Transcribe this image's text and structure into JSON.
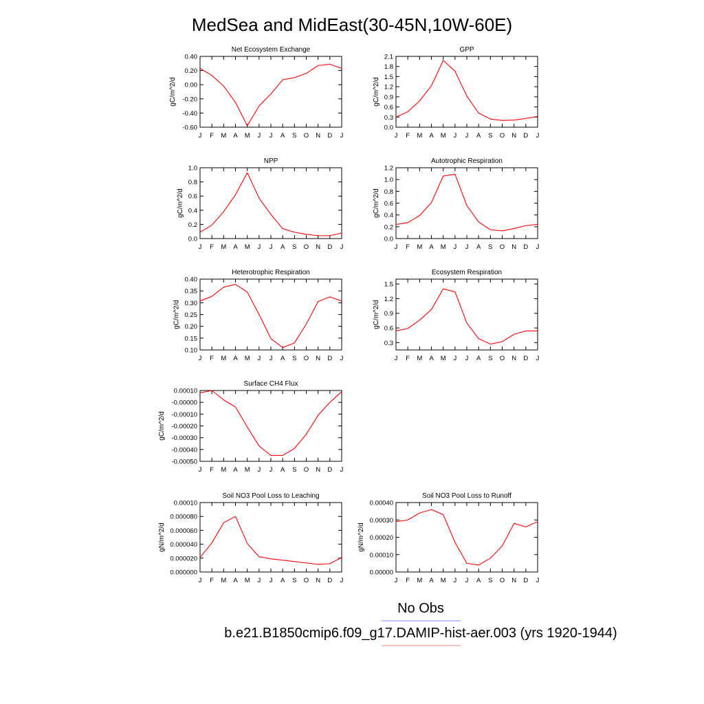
{
  "figure": {
    "title": "MedSea and MidEast(30-45N,10W-60E)",
    "legend": [
      {
        "label": "No Obs",
        "color": "#8080ff"
      },
      {
        "label": "b.e21.B1850cmip6.f09_g17.DAMIP-hist-aer.003 (yrs 1920-1944)",
        "color": "#ff8080"
      }
    ],
    "series_color": "#ff0000"
  },
  "chart_data": [
    {
      "type": "line",
      "title": "Net Ecosystem Exchange",
      "ylabel": "gC/m^2/d",
      "x": [
        "J",
        "F",
        "M",
        "A",
        "M",
        "J",
        "J",
        "A",
        "S",
        "O",
        "N",
        "D",
        "J"
      ],
      "ylim": [
        -0.6,
        0.4
      ],
      "yticks": [
        -0.6,
        -0.4,
        -0.2,
        0.0,
        0.2,
        0.4
      ],
      "ytick_labels": [
        "-0.60",
        "-0.40",
        "-0.20",
        "0.00",
        "0.20",
        "0.40"
      ],
      "values": [
        0.23,
        0.13,
        -0.02,
        -0.25,
        -0.58,
        -0.3,
        -0.13,
        0.07,
        0.1,
        0.16,
        0.27,
        0.29,
        0.23
      ]
    },
    {
      "type": "line",
      "title": "GPP",
      "ylabel": "gC/m^2/d",
      "x": [
        "J",
        "F",
        "M",
        "A",
        "M",
        "J",
        "J",
        "A",
        "S",
        "O",
        "N",
        "D",
        "J"
      ],
      "ylim": [
        0,
        2.1
      ],
      "yticks": [
        0,
        0.3,
        0.6,
        0.9,
        1.2,
        1.5,
        1.8,
        2.1
      ],
      "ytick_labels": [
        "0.0",
        "0.3",
        "0.6",
        "0.9",
        "1.2",
        "1.5",
        "1.8",
        "2.1"
      ],
      "values": [
        0.3,
        0.46,
        0.78,
        1.23,
        1.98,
        1.66,
        0.92,
        0.42,
        0.24,
        0.2,
        0.21,
        0.26,
        0.32
      ]
    },
    {
      "type": "line",
      "title": "NPP",
      "ylabel": "gC/m^2/d",
      "x": [
        "J",
        "F",
        "M",
        "A",
        "M",
        "J",
        "J",
        "A",
        "S",
        "O",
        "N",
        "D",
        "J"
      ],
      "ylim": [
        0,
        1.0
      ],
      "yticks": [
        0,
        0.2,
        0.4,
        0.6,
        0.8,
        1.0
      ],
      "ytick_labels": [
        "0.0",
        "0.2",
        "0.4",
        "0.6",
        "0.8",
        "1.0"
      ],
      "values": [
        0.09,
        0.19,
        0.38,
        0.62,
        0.93,
        0.57,
        0.34,
        0.14,
        0.09,
        0.06,
        0.04,
        0.04,
        0.08
      ]
    },
    {
      "type": "line",
      "title": "Autotrophic Respiration",
      "ylabel": "gC/m^2/d",
      "x": [
        "J",
        "F",
        "M",
        "A",
        "M",
        "J",
        "J",
        "A",
        "S",
        "O",
        "N",
        "D",
        "J"
      ],
      "ylim": [
        0,
        1.2
      ],
      "yticks": [
        0,
        0.2,
        0.4,
        0.6,
        0.8,
        1.0,
        1.2
      ],
      "ytick_labels": [
        "0.0",
        "0.2",
        "0.4",
        "0.6",
        "0.8",
        "1.0",
        "1.2"
      ],
      "values": [
        0.24,
        0.27,
        0.39,
        0.61,
        1.06,
        1.09,
        0.56,
        0.28,
        0.15,
        0.13,
        0.17,
        0.22,
        0.24
      ]
    },
    {
      "type": "line",
      "title": "Heterotrophic Respiration",
      "ylabel": "gC/m^2/d",
      "x": [
        "J",
        "F",
        "M",
        "A",
        "M",
        "J",
        "J",
        "A",
        "S",
        "O",
        "N",
        "D",
        "J"
      ],
      "ylim": [
        0.1,
        0.4
      ],
      "yticks": [
        0.1,
        0.15,
        0.2,
        0.25,
        0.3,
        0.35,
        0.4
      ],
      "ytick_labels": [
        "0.10",
        "0.15",
        "0.20",
        "0.25",
        "0.30",
        "0.35",
        "0.40"
      ],
      "values": [
        0.307,
        0.327,
        0.366,
        0.378,
        0.345,
        0.25,
        0.148,
        0.11,
        0.13,
        0.21,
        0.305,
        0.325,
        0.307
      ]
    },
    {
      "type": "line",
      "title": "Ecosystem Respiration",
      "ylabel": "gC/m^2/d",
      "x": [
        "J",
        "F",
        "M",
        "A",
        "M",
        "J",
        "J",
        "A",
        "S",
        "O",
        "N",
        "D",
        "J"
      ],
      "ylim": [
        0.15,
        1.6
      ],
      "yticks": [
        0.3,
        0.6,
        0.9,
        1.2,
        1.5
      ],
      "ytick_labels": [
        "0.3",
        "0.6",
        "0.9",
        "1.2",
        "1.5"
      ],
      "values": [
        0.54,
        0.59,
        0.76,
        0.98,
        1.4,
        1.34,
        0.7,
        0.38,
        0.27,
        0.32,
        0.47,
        0.54,
        0.54
      ]
    },
    {
      "type": "line",
      "title": "Surface CH4 Flux",
      "ylabel": "gC/m^2/d",
      "x": [
        "J",
        "F",
        "M",
        "A",
        "M",
        "J",
        "J",
        "A",
        "S",
        "O",
        "N",
        "D",
        "J"
      ],
      "ylim": [
        -0.0005,
        0.0001
      ],
      "yticks": [
        -0.0005,
        -0.0004,
        -0.0003,
        -0.0002,
        -0.0001,
        0.0,
        0.0001
      ],
      "ytick_labels": [
        "-0.00050",
        "-0.00040",
        "-0.00030",
        "-0.00020",
        "-0.00010",
        "-0.00000",
        "0.00010"
      ],
      "values": [
        8e-05,
        0.0001,
        2e-05,
        -4e-05,
        -0.00021,
        -0.00037,
        -0.00045,
        -0.00045,
        -0.00039,
        -0.00027,
        -0.00011,
        0.0,
        9e-05
      ]
    },
    {
      "type": "line",
      "title": "Soil NO3 Pool Loss to Leaching",
      "ylabel": "gN/m^2/d",
      "x": [
        "J",
        "F",
        "M",
        "A",
        "M",
        "J",
        "J",
        "A",
        "S",
        "O",
        "N",
        "D",
        "J"
      ],
      "ylim": [
        0,
        0.0001
      ],
      "yticks": [
        0,
        2e-05,
        4e-05,
        6e-05,
        8e-05,
        0.0001
      ],
      "ytick_labels": [
        "0.000000",
        "0.000020",
        "0.000040",
        "0.000060",
        "0.000080",
        "0.00010"
      ],
      "values": [
        2.1e-05,
        4.2e-05,
        7.1e-05,
        8e-05,
        4.1e-05,
        2.2e-05,
        1.9e-05,
        1.7e-05,
        1.5e-05,
        1.3e-05,
        1.1e-05,
        1.2e-05,
        2.1e-05
      ]
    },
    {
      "type": "line",
      "title": "Soil NO3 Pool Loss to Runoff",
      "ylabel": "gN/m^2/d",
      "x": [
        "J",
        "F",
        "M",
        "A",
        "M",
        "J",
        "J",
        "A",
        "S",
        "O",
        "N",
        "D",
        "J"
      ],
      "ylim": [
        0,
        0.0004
      ],
      "yticks": [
        0,
        0.0001,
        0.0002,
        0.0003,
        0.0004
      ],
      "ytick_labels": [
        "0.00000",
        "0.00010",
        "0.00020",
        "0.00030",
        "0.00040"
      ],
      "values": [
        0.00029,
        0.0003,
        0.00034,
        0.00036,
        0.00033,
        0.00017,
        5e-05,
        4e-05,
        8e-05,
        0.00015,
        0.00028,
        0.00026,
        0.00029
      ]
    }
  ]
}
